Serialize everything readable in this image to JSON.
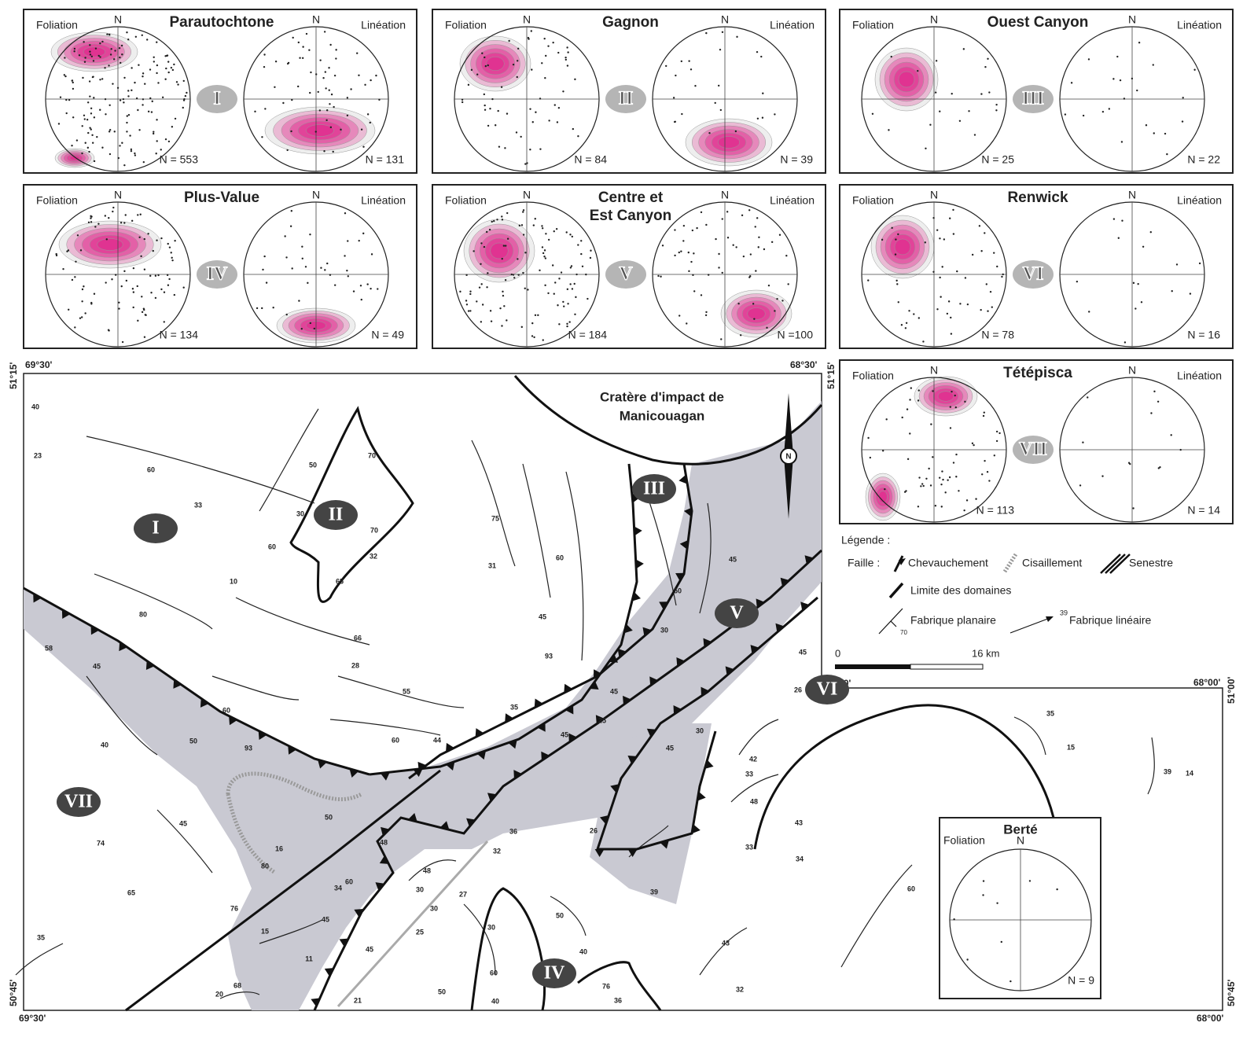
{
  "panels": [
    {
      "title": [
        "Parautochtone"
      ],
      "domain": "I",
      "foliation": {
        "label": "Foliation",
        "north": "N",
        "count": "N = 553"
      },
      "lineation": {
        "label": "Linéation",
        "north": "N",
        "count": "N = 131"
      }
    },
    {
      "title": [
        "Gagnon"
      ],
      "domain": "II",
      "foliation": {
        "label": "Foliation",
        "north": "N",
        "count": "N = 84"
      },
      "lineation": {
        "label": "Linéation",
        "north": "N",
        "count": "N = 39"
      }
    },
    {
      "title": [
        "Ouest Canyon"
      ],
      "domain": "III",
      "foliation": {
        "label": "Foliation",
        "north": "N",
        "count": "N = 25"
      },
      "lineation": {
        "label": "Linéation",
        "north": "N",
        "count": "N = 22"
      }
    },
    {
      "title": [
        "Plus-Value"
      ],
      "domain": "IV",
      "foliation": {
        "label": "Foliation",
        "north": "N",
        "count": "N = 134"
      },
      "lineation": {
        "label": "Linéation",
        "north": "N",
        "count": "N = 49"
      }
    },
    {
      "title": [
        "Centre et",
        "Est Canyon"
      ],
      "domain": "V",
      "foliation": {
        "label": "Foliation",
        "north": "N",
        "count": "N = 184"
      },
      "lineation": {
        "label": "Linéation",
        "north": "N",
        "count": "N =100"
      }
    },
    {
      "title": [
        "Renwick"
      ],
      "domain": "VI",
      "foliation": {
        "label": "Foliation",
        "north": "N",
        "count": "N = 78"
      },
      "lineation": {
        "label": "Linéation",
        "north": "N",
        "count": "N = 16"
      }
    },
    {
      "title": [
        "Tétépisca"
      ],
      "domain": "VII",
      "foliation": {
        "label": "Foliation",
        "north": "N",
        "count": "N = 113"
      },
      "lineation": {
        "label": "Linéation",
        "north": "N",
        "count": "N = 14"
      }
    }
  ],
  "berte": {
    "title": "Berté",
    "foliation": "Foliation",
    "north": "N",
    "count": "N = 9"
  },
  "map": {
    "coordinates": [
      "69°30'",
      "68°30'",
      "51°15'",
      "51°15'",
      "50°45'",
      "69°30'",
      "51°00'",
      "68°00'",
      "51°00'",
      "50°45'",
      "68°00'"
    ],
    "crater": [
      "Cratère d'impact de",
      "Manicouagan"
    ],
    "domains": [
      "I",
      "II",
      "III",
      "V",
      "VI",
      "VII",
      "IV"
    ],
    "north": "N",
    "measurements": [
      40,
      23,
      60,
      33,
      50,
      30,
      70,
      70,
      32,
      65,
      60,
      10,
      75,
      31,
      60,
      45,
      80,
      66,
      28,
      93,
      55,
      35,
      45,
      25,
      44,
      60,
      45,
      30,
      50,
      30,
      45,
      58,
      45,
      40,
      60,
      93,
      50,
      74,
      65,
      45,
      50,
      16,
      80,
      34,
      60,
      48,
      76,
      15,
      11,
      45,
      21,
      45,
      48,
      30,
      30,
      25,
      27,
      30,
      50,
      40,
      60,
      50,
      40,
      76,
      36,
      20,
      68,
      35,
      26,
      45,
      45,
      36,
      26,
      32,
      39,
      42,
      33,
      48,
      33,
      43,
      34,
      60,
      43,
      32,
      35,
      15,
      39,
      14
    ]
  },
  "legend": {
    "title": "Légende :",
    "fault": "Faille :",
    "thrust": "Chevauchement",
    "shear": "Cisaillement",
    "sinistral": "Senestre",
    "boundary": "Limite des domaines",
    "planar": "Fabrique planaire",
    "planar_dip": 70,
    "linear": "Fabrique linéaire",
    "linear_plunge": 39,
    "scale_start": "0",
    "scale_end": "16 km"
  }
}
